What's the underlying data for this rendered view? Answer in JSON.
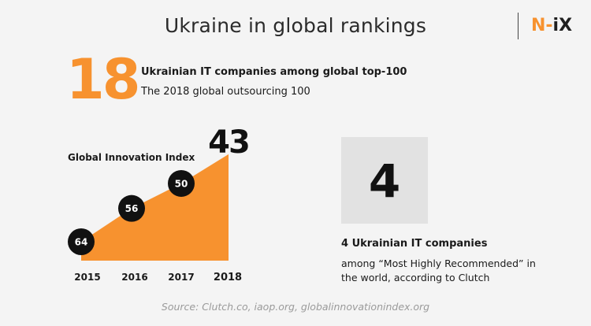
{
  "header": {
    "title": "Ukraine in global rankings",
    "logo_left": "N-",
    "logo_right": "iX"
  },
  "top_stat": {
    "value": "18",
    "headline": "Ukrainian IT companies among global top-100",
    "subline": "The 2018 global outsourcing 100"
  },
  "chart_data": {
    "type": "area",
    "title": "Global Innovation Index",
    "x": [
      "2015",
      "2016",
      "2017",
      "2018"
    ],
    "values": [
      64,
      56,
      50,
      43
    ],
    "labels": [
      "64",
      "56",
      "50",
      "43"
    ],
    "colors": {
      "area": "#f7922f",
      "marker": "#111111",
      "marker_text": "#ffffff"
    }
  },
  "clutch": {
    "value": "4",
    "headline": "4 Ukrainian IT companies",
    "subline": "among “Most Highly Recommended” in the world, according to Clutch"
  },
  "footer": {
    "source": "Source: Clutch.co, iaop.org, globalinnovationindex.org"
  }
}
